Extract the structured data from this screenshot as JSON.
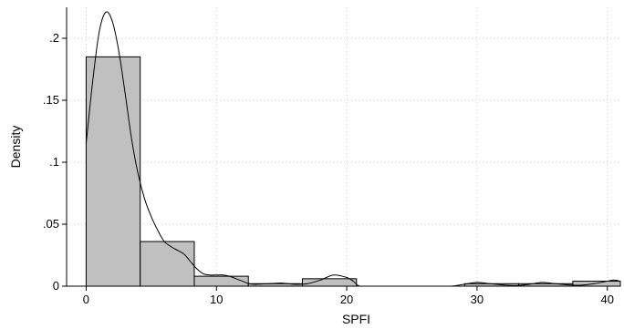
{
  "chart_data": {
    "type": "bar",
    "subtype": "histogram-with-density",
    "xlabel": "SPFI",
    "ylabel": "Density",
    "xlim": [
      -1.5,
      41
    ],
    "ylim": [
      0,
      0.225
    ],
    "xticks": [
      0,
      10,
      20,
      30,
      40
    ],
    "xtick_labels": [
      "0",
      "10",
      "20",
      "30",
      "40"
    ],
    "yticks": [
      0,
      0.05,
      0.1,
      0.15,
      0.2
    ],
    "ytick_labels": [
      "0",
      ".05",
      ".1",
      ".15",
      ".2"
    ],
    "grid": true,
    "bin_width": 4.15,
    "bins": [
      {
        "x0": 0.0,
        "x1": 4.15,
        "density": 0.185
      },
      {
        "x0": 4.15,
        "x1": 8.3,
        "density": 0.036
      },
      {
        "x0": 8.3,
        "x1": 12.45,
        "density": 0.008
      },
      {
        "x0": 12.45,
        "x1": 16.6,
        "density": 0.002
      },
      {
        "x0": 16.6,
        "x1": 20.75,
        "density": 0.006
      },
      {
        "x0": 20.75,
        "x1": 24.9,
        "density": 0.0
      },
      {
        "x0": 24.9,
        "x1": 29.05,
        "density": 0.0
      },
      {
        "x0": 29.05,
        "x1": 33.2,
        "density": 0.002
      },
      {
        "x0": 33.2,
        "x1": 37.35,
        "density": 0.002
      },
      {
        "x0": 37.35,
        "x1": 41.5,
        "density": 0.004
      }
    ],
    "density_curve": {
      "x": [
        0,
        0.5,
        1,
        1.5,
        2,
        2.5,
        3,
        3.5,
        4,
        4.5,
        5,
        5.5,
        6,
        6.5,
        7,
        7.5,
        8,
        8.5,
        9,
        9.5,
        10,
        10.5,
        11,
        11.5,
        12,
        12.5,
        13,
        14,
        15,
        16,
        17,
        18,
        19,
        20,
        20.5,
        21,
        22,
        24,
        26,
        27,
        28,
        29,
        30,
        31,
        32,
        33,
        34,
        35,
        36,
        37,
        38,
        39,
        40,
        40.5,
        41
      ],
      "y": [
        0.115,
        0.165,
        0.205,
        0.221,
        0.214,
        0.19,
        0.155,
        0.118,
        0.09,
        0.07,
        0.056,
        0.045,
        0.036,
        0.032,
        0.029,
        0.026,
        0.02,
        0.014,
        0.01,
        0.009,
        0.009,
        0.009,
        0.008,
        0.006,
        0.004,
        0.002,
        0.0015,
        0.002,
        0.0025,
        0.0015,
        0.002,
        0.005,
        0.009,
        0.007,
        0.004,
        0.0,
        0.0,
        0.0,
        0.0,
        0.0,
        0.0,
        0.0015,
        0.003,
        0.002,
        0.001,
        0.0005,
        0.0015,
        0.003,
        0.002,
        0.001,
        0.0008,
        0.002,
        0.004,
        0.005,
        0.004
      ]
    }
  }
}
